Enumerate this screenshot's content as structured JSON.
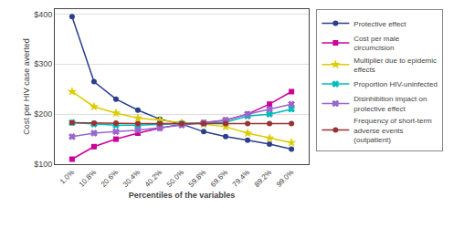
{
  "chart_data": {
    "type": "line",
    "categories": [
      "1.0%",
      "10.8%",
      "20.6%",
      "30.4%",
      "40.2%",
      "50.0%",
      "59.8%",
      "69.6%",
      "79.4%",
      "89.2%",
      "99.0%"
    ],
    "series": [
      {
        "name": "Protective effect",
        "color": "#2c3e8c",
        "marker": "circle",
        "values": [
          395,
          265,
          230,
          208,
          190,
          180,
          165,
          155,
          148,
          140,
          130
        ]
      },
      {
        "name": "Cost per male\ncircumcision",
        "color": "#cc0099",
        "marker": "square",
        "values": [
          110,
          135,
          150,
          162,
          172,
          180,
          183,
          188,
          200,
          220,
          245
        ]
      },
      {
        "name": "Multiplier due to epidemic\neffects",
        "color": "#ddcc00",
        "marker": "star",
        "values": [
          245,
          215,
          202,
          192,
          188,
          183,
          180,
          175,
          162,
          152,
          143
        ]
      },
      {
        "name": "Proportion HIV-uninfected",
        "color": "#00bbbb",
        "marker": "x",
        "values": [
          183,
          180,
          178,
          178,
          180,
          181,
          182,
          184,
          196,
          200,
          210
        ]
      },
      {
        "name": "Disinhibition impact on\nprotective effect",
        "color": "#9966cc",
        "marker": "x",
        "values": [
          155,
          162,
          165,
          168,
          173,
          178,
          182,
          188,
          200,
          210,
          220
        ]
      },
      {
        "name": "Frequency of short-term\nadverse events\n(outpatient)",
        "color": "#993333",
        "marker": "circle",
        "values": [
          183,
          182,
          182,
          181,
          181,
          181,
          181,
          181,
          181,
          181,
          181
        ]
      }
    ],
    "xlabel": "Percentiles of the variables",
    "ylabel": "Cost per HIV case averted",
    "ylim": [
      100,
      410
    ],
    "yticks": [
      {
        "value": 100,
        "label": "$100"
      },
      {
        "value": 200,
        "label": "$200"
      },
      {
        "value": 300,
        "label": "$300"
      },
      {
        "value": 400,
        "label": "$400"
      }
    ],
    "grid": "y",
    "legend": "right"
  }
}
